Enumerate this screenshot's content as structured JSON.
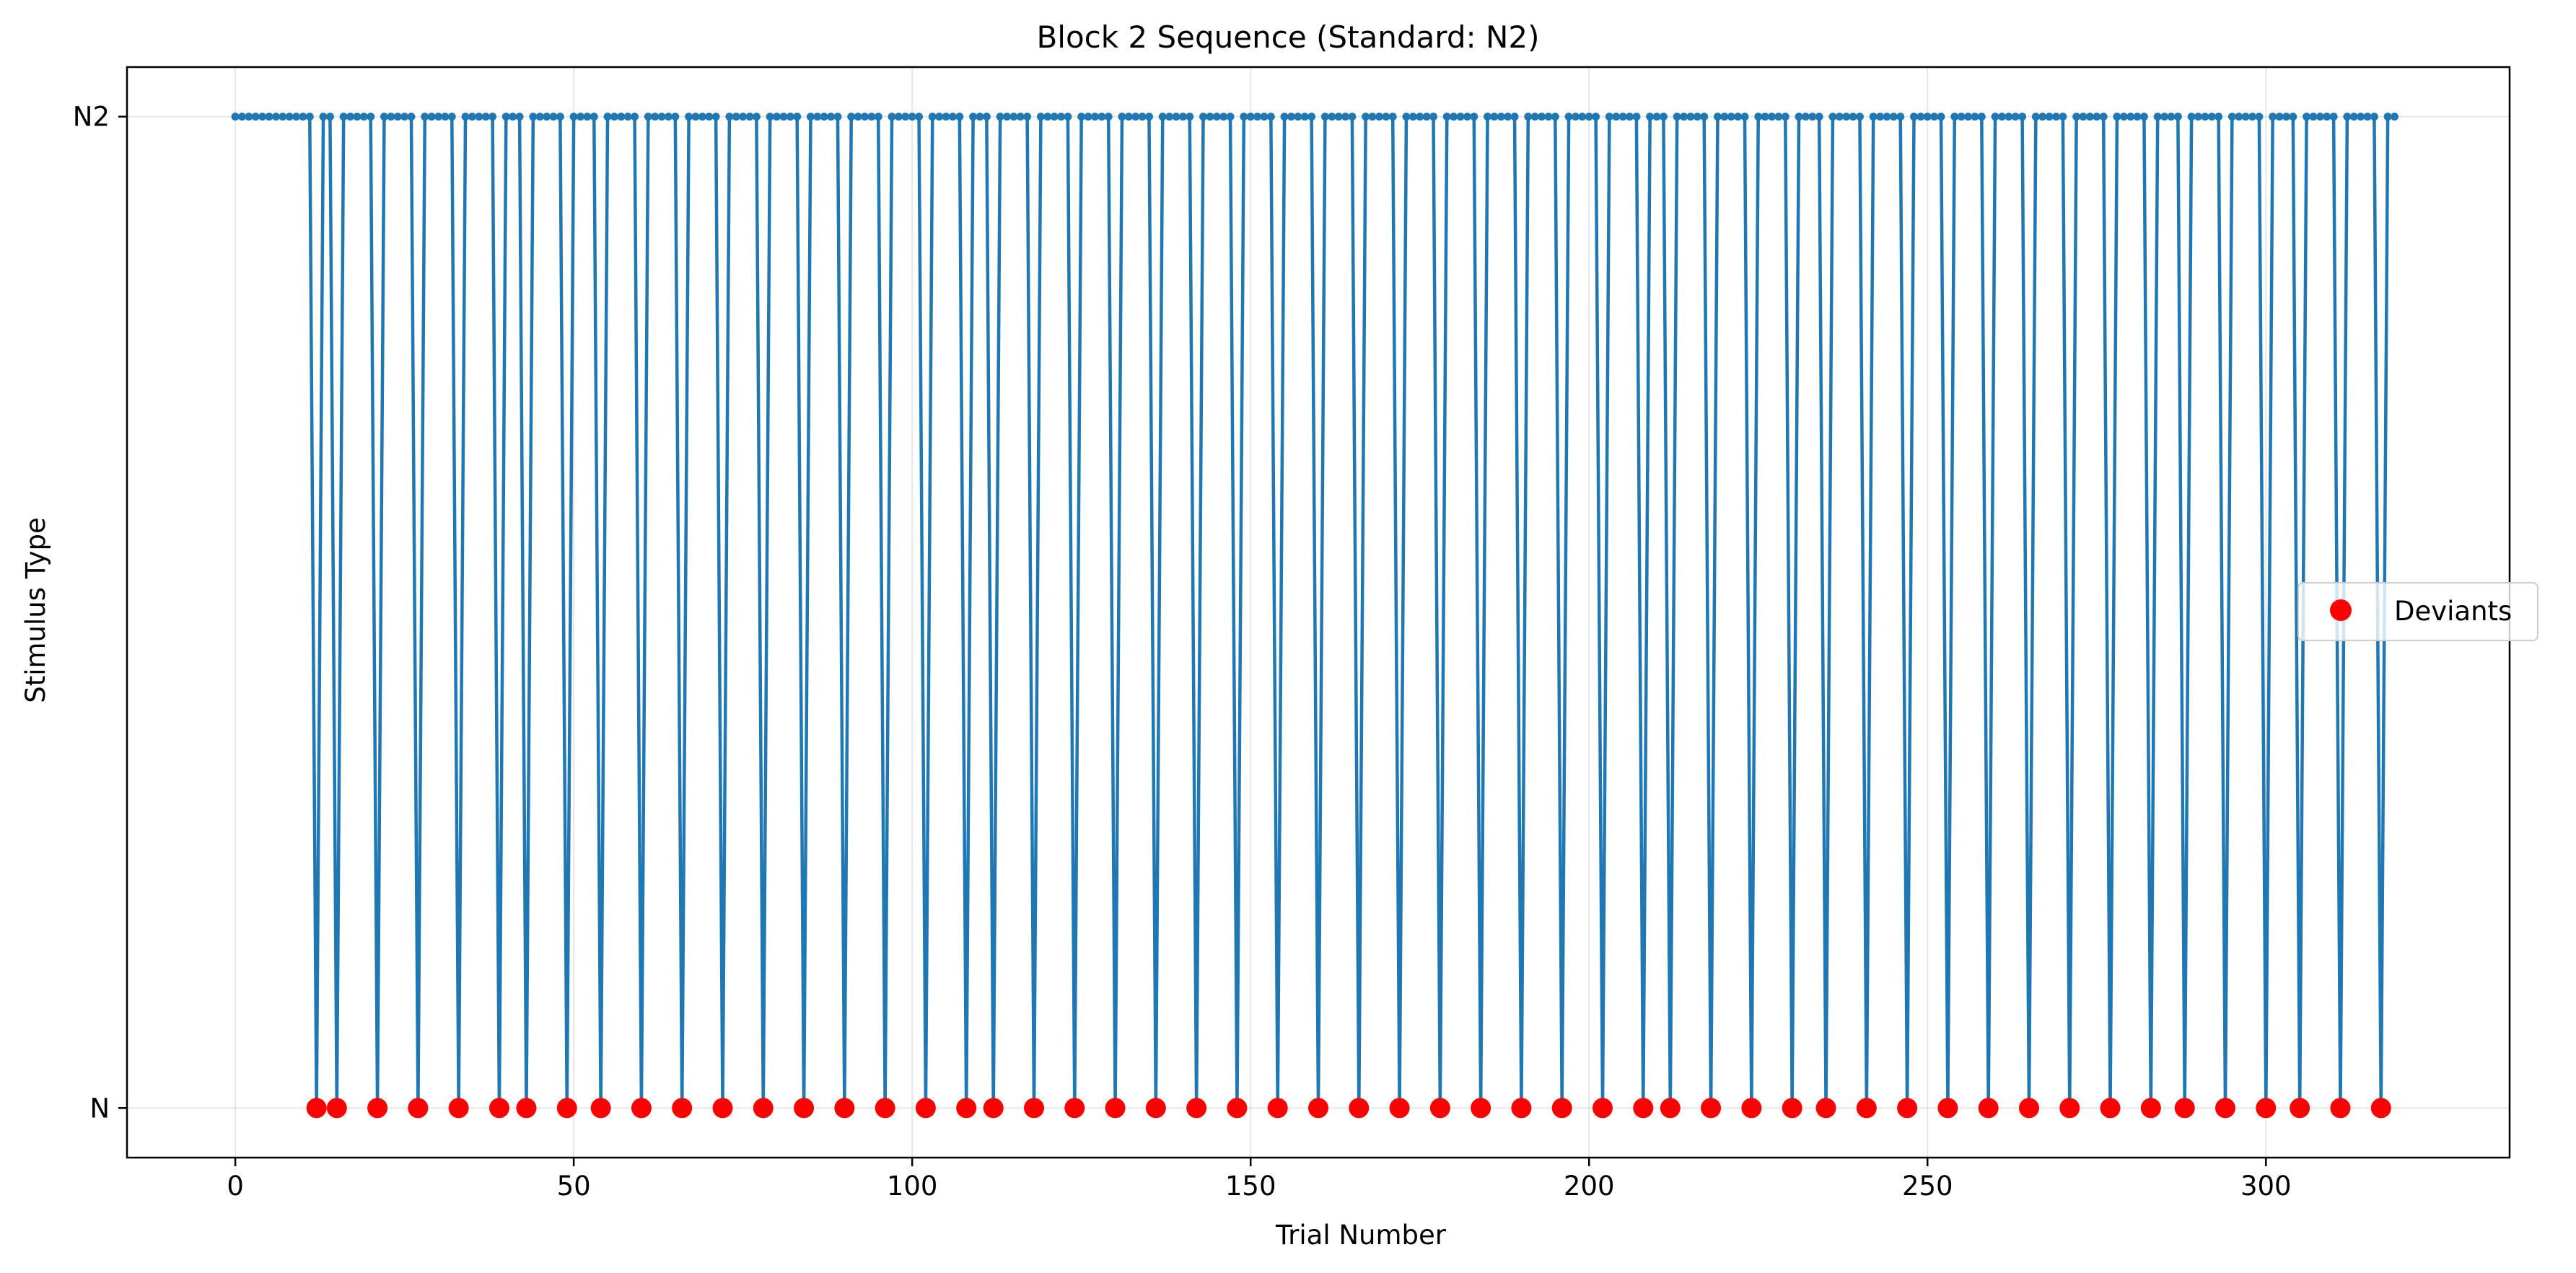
{
  "chart_data": {
    "type": "line",
    "title": "Block 2 Sequence (Standard: N2)",
    "xlabel": "Trial Number",
    "ylabel": "Stimulus Type",
    "xlim": [
      -16,
      336
    ],
    "ylim": [
      -0.05,
      1.05
    ],
    "xticks": [
      0,
      50,
      100,
      150,
      200,
      250,
      300
    ],
    "yticks": [
      {
        "value": 0,
        "label": "N"
      },
      {
        "value": 1,
        "label": "N2"
      }
    ],
    "grid": true,
    "n_trials": 320,
    "series": [
      {
        "name": "",
        "color": "#1f77b4",
        "marker": "circle-small",
        "description": "stimulus value per trial: 1 = N2 (standard), 0 = N (deviant)"
      },
      {
        "name": "Deviants",
        "color": "#ff0000",
        "marker": "circle",
        "x": [
          12,
          15,
          21,
          27,
          33,
          39,
          43,
          49,
          54,
          60,
          66,
          72,
          78,
          84,
          90,
          96,
          102,
          108,
          112,
          118,
          124,
          130,
          136,
          142,
          148,
          154,
          160,
          166,
          172,
          178,
          184,
          190,
          196,
          202,
          208,
          212,
          218,
          224,
          230,
          235,
          241,
          247,
          253,
          259,
          265,
          271,
          277,
          283,
          288,
          294,
          300,
          305,
          311,
          317
        ],
        "y_value": 0
      }
    ],
    "legend": {
      "position": "center-right",
      "entries": [
        "Deviants"
      ]
    }
  }
}
